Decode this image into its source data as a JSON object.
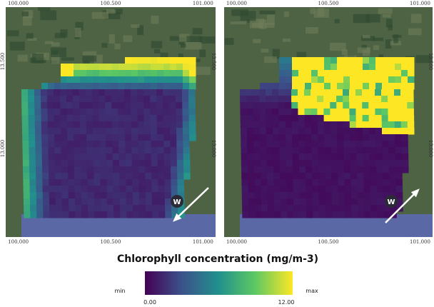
{
  "panels": [
    {
      "top_labels": [
        "100.000",
        "100.500",
        "101.000"
      ],
      "bottom_labels": [
        "100.000",
        "100.500",
        "101.000"
      ],
      "left_labels": [
        "13.500",
        "13.000"
      ],
      "right_labels": [
        "13.500",
        "13.000"
      ],
      "wind_label": "W"
    },
    {
      "top_labels": [
        "100.000",
        "100.500",
        "101.000"
      ],
      "bottom_labels": [
        "100.000",
        "100.500",
        "101.000"
      ],
      "left_labels": [],
      "right_labels": [
        "13.500",
        "13.000"
      ],
      "wind_label": "W"
    }
  ],
  "legend": {
    "title": "Chlorophyll concentration (mg/m-3)",
    "min_label": "min",
    "max_label": "max",
    "start_label": "0.00",
    "end_label": "12.00"
  }
}
